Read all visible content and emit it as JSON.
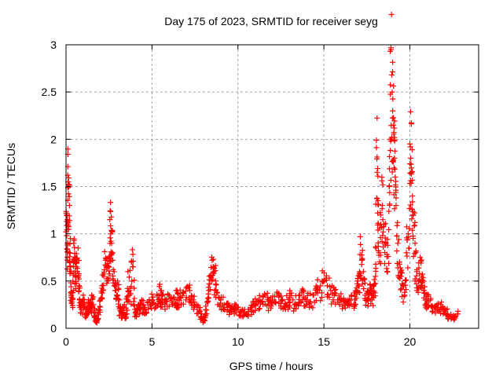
{
  "chart_data": {
    "type": "scatter",
    "title": "Day 175 of 2023, SRMTID for receiver seyg",
    "xlabel": "GPS time / hours",
    "ylabel": "SRMTID / TECUs",
    "xlim": [
      0,
      24
    ],
    "ylim": [
      0,
      3
    ],
    "xticks": [
      0,
      5,
      10,
      15,
      20
    ],
    "xtick_labels": [
      "0",
      "5",
      "10",
      "15",
      "20"
    ],
    "yticks": [
      0,
      0.5,
      1,
      1.5,
      2,
      2.5,
      3
    ],
    "ytick_labels": [
      "0",
      "0.5",
      "1",
      "1.5",
      "2",
      "2.5",
      "3"
    ],
    "grid": true,
    "marker": "plus",
    "series": [
      {
        "name": "SRMTID",
        "color": "#ff0000",
        "envelope_note": "dense point cloud; representative (hour, value) samples",
        "points": [
          [
            0.0,
            1.02
          ],
          [
            0.05,
            1.2
          ],
          [
            0.08,
            0.75
          ],
          [
            0.1,
            1.62
          ],
          [
            0.12,
            1.55
          ],
          [
            0.15,
            1.5
          ],
          [
            0.2,
            1.3
          ],
          [
            0.22,
            0.6
          ],
          [
            0.25,
            0.95
          ],
          [
            0.3,
            0.35
          ],
          [
            0.35,
            0.28
          ],
          [
            0.4,
            0.5
          ],
          [
            0.45,
            0.9
          ],
          [
            0.5,
            0.75
          ],
          [
            0.55,
            0.55
          ],
          [
            0.6,
            0.65
          ],
          [
            0.7,
            0.85
          ],
          [
            0.75,
            0.45
          ],
          [
            0.8,
            0.3
          ],
          [
            0.9,
            0.2
          ],
          [
            1.0,
            0.35
          ],
          [
            1.1,
            0.25
          ],
          [
            1.2,
            0.15
          ],
          [
            1.3,
            0.3
          ],
          [
            1.4,
            0.2
          ],
          [
            1.5,
            0.35
          ],
          [
            1.6,
            0.25
          ],
          [
            1.7,
            0.12
          ],
          [
            1.8,
            0.08
          ],
          [
            1.9,
            0.2
          ],
          [
            2.0,
            0.3
          ],
          [
            2.1,
            0.45
          ],
          [
            2.2,
            0.55
          ],
          [
            2.3,
            0.72
          ],
          [
            2.4,
            0.5
          ],
          [
            2.5,
            0.65
          ],
          [
            2.55,
            1.15
          ],
          [
            2.6,
            1.0
          ],
          [
            2.65,
            0.9
          ],
          [
            2.7,
            0.8
          ],
          [
            2.8,
            0.6
          ],
          [
            2.9,
            0.4
          ],
          [
            3.0,
            0.5
          ],
          [
            3.1,
            0.3
          ],
          [
            3.2,
            0.18
          ],
          [
            3.3,
            0.15
          ],
          [
            3.4,
            0.25
          ],
          [
            3.5,
            0.12
          ],
          [
            3.6,
            0.6
          ],
          [
            3.7,
            0.35
          ],
          [
            3.8,
            0.7
          ],
          [
            3.9,
            0.65
          ],
          [
            4.0,
            0.2
          ],
          [
            4.1,
            0.15
          ],
          [
            4.2,
            0.25
          ],
          [
            4.3,
            0.2
          ],
          [
            4.4,
            0.3
          ],
          [
            4.5,
            0.22
          ],
          [
            4.6,
            0.2
          ],
          [
            4.8,
            0.28
          ],
          [
            5.0,
            0.3
          ],
          [
            5.2,
            0.25
          ],
          [
            5.4,
            0.35
          ],
          [
            5.5,
            0.4
          ],
          [
            5.6,
            0.3
          ],
          [
            5.8,
            0.28
          ],
          [
            6.0,
            0.35
          ],
          [
            6.2,
            0.25
          ],
          [
            6.4,
            0.4
          ],
          [
            6.5,
            0.3
          ],
          [
            6.6,
            0.32
          ],
          [
            6.8,
            0.38
          ],
          [
            7.0,
            0.33
          ],
          [
            7.2,
            0.4
          ],
          [
            7.4,
            0.3
          ],
          [
            7.6,
            0.25
          ],
          [
            7.8,
            0.18
          ],
          [
            7.9,
            0.1
          ],
          [
            8.0,
            0.08
          ],
          [
            8.1,
            0.15
          ],
          [
            8.2,
            0.28
          ],
          [
            8.3,
            0.4
          ],
          [
            8.4,
            0.55
          ],
          [
            8.5,
            0.72
          ],
          [
            8.6,
            0.6
          ],
          [
            8.7,
            0.5
          ],
          [
            8.8,
            0.38
          ],
          [
            9.0,
            0.3
          ],
          [
            9.2,
            0.25
          ],
          [
            9.4,
            0.22
          ],
          [
            9.6,
            0.2
          ],
          [
            9.8,
            0.22
          ],
          [
            10.0,
            0.2
          ],
          [
            10.2,
            0.18
          ],
          [
            10.4,
            0.15
          ],
          [
            10.6,
            0.2
          ],
          [
            10.8,
            0.22
          ],
          [
            11.0,
            0.25
          ],
          [
            11.2,
            0.3
          ],
          [
            11.4,
            0.28
          ],
          [
            11.6,
            0.35
          ],
          [
            11.8,
            0.25
          ],
          [
            12.0,
            0.3
          ],
          [
            12.2,
            0.28
          ],
          [
            12.4,
            0.35
          ],
          [
            12.6,
            0.3
          ],
          [
            12.8,
            0.25
          ],
          [
            13.0,
            0.32
          ],
          [
            13.2,
            0.3
          ],
          [
            13.4,
            0.25
          ],
          [
            13.6,
            0.35
          ],
          [
            13.8,
            0.4
          ],
          [
            14.0,
            0.3
          ],
          [
            14.2,
            0.28
          ],
          [
            14.4,
            0.35
          ],
          [
            14.6,
            0.4
          ],
          [
            14.8,
            0.45
          ],
          [
            15.0,
            0.5
          ],
          [
            15.2,
            0.45
          ],
          [
            15.4,
            0.4
          ],
          [
            15.6,
            0.35
          ],
          [
            15.8,
            0.3
          ],
          [
            16.0,
            0.28
          ],
          [
            16.2,
            0.25
          ],
          [
            16.4,
            0.3
          ],
          [
            16.6,
            0.35
          ],
          [
            16.8,
            0.3
          ],
          [
            16.9,
            0.4
          ],
          [
            17.0,
            0.45
          ],
          [
            17.1,
            0.78
          ],
          [
            17.2,
            0.72
          ],
          [
            17.3,
            0.6
          ],
          [
            17.4,
            0.35
          ],
          [
            17.5,
            0.3
          ],
          [
            17.6,
            0.35
          ],
          [
            17.7,
            0.4
          ],
          [
            17.8,
            0.3
          ],
          [
            17.9,
            0.45
          ],
          [
            18.0,
            0.55
          ],
          [
            18.05,
            1.99
          ],
          [
            18.1,
            1.65
          ],
          [
            18.15,
            1.35
          ],
          [
            18.2,
            0.8
          ],
          [
            18.3,
            1.2
          ],
          [
            18.4,
            1.3
          ],
          [
            18.5,
            1.1
          ],
          [
            18.6,
            0.9
          ],
          [
            18.7,
            0.6
          ],
          [
            18.8,
            1.5
          ],
          [
            18.85,
            2.0
          ],
          [
            18.9,
            2.95
          ],
          [
            18.95,
            2.68
          ],
          [
            19.0,
            2.3
          ],
          [
            19.05,
            2.15
          ],
          [
            19.1,
            1.8
          ],
          [
            19.15,
            1.6
          ],
          [
            19.2,
            1.3
          ],
          [
            19.3,
            0.9
          ],
          [
            19.4,
            0.7
          ],
          [
            19.5,
            0.55
          ],
          [
            19.6,
            0.45
          ],
          [
            19.7,
            0.35
          ],
          [
            19.8,
            0.8
          ],
          [
            19.9,
            1.0
          ],
          [
            20.0,
            1.95
          ],
          [
            20.05,
            1.8
          ],
          [
            20.1,
            1.65
          ],
          [
            20.15,
            1.4
          ],
          [
            20.2,
            1.2
          ],
          [
            20.3,
            0.9
          ],
          [
            20.4,
            0.6
          ],
          [
            20.5,
            0.5
          ],
          [
            20.6,
            0.75
          ],
          [
            20.7,
            0.55
          ],
          [
            20.8,
            0.4
          ],
          [
            20.9,
            0.3
          ],
          [
            21.0,
            0.28
          ],
          [
            21.2,
            0.3
          ],
          [
            21.4,
            0.22
          ],
          [
            21.6,
            0.2
          ],
          [
            21.8,
            0.25
          ],
          [
            22.0,
            0.2
          ],
          [
            22.2,
            0.15
          ],
          [
            22.4,
            0.1
          ],
          [
            22.6,
            0.12
          ],
          [
            22.8,
            0.18
          ]
        ]
      }
    ]
  }
}
